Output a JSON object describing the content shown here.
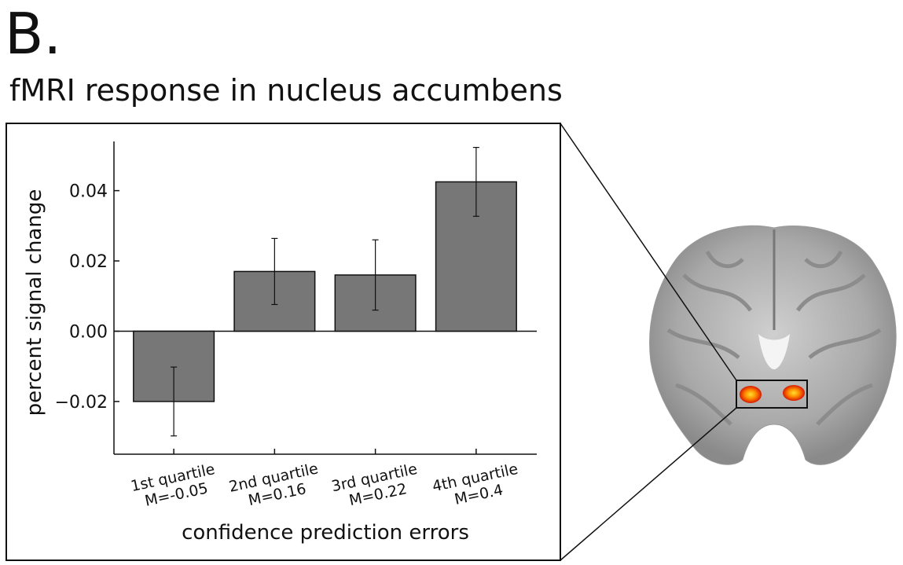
{
  "panel_label": "B.",
  "chart_data": {
    "type": "bar",
    "title": "fMRI response in nucleus accumbens",
    "categories": [
      "1st quartile",
      "2nd quartile",
      "3rd quartile",
      "4th quartile"
    ],
    "category_notes": [
      "M=-0.05",
      "M=0.16",
      "M=0.22",
      "M=0.4"
    ],
    "values": [
      -0.02,
      0.017,
      0.016,
      0.0425
    ],
    "errors": [
      0.0098,
      0.0094,
      0.01,
      0.0098
    ],
    "color": "#777777",
    "ylim": [
      -0.035,
      0.054
    ],
    "yticks": [
      {
        "value": -0.02,
        "label": "−0.02"
      },
      {
        "value": 0,
        "label": "0.00"
      },
      0.02,
      0.04
    ],
    "ylabel": "percent signal change",
    "xlabel": "confidence prediction errors"
  }
}
